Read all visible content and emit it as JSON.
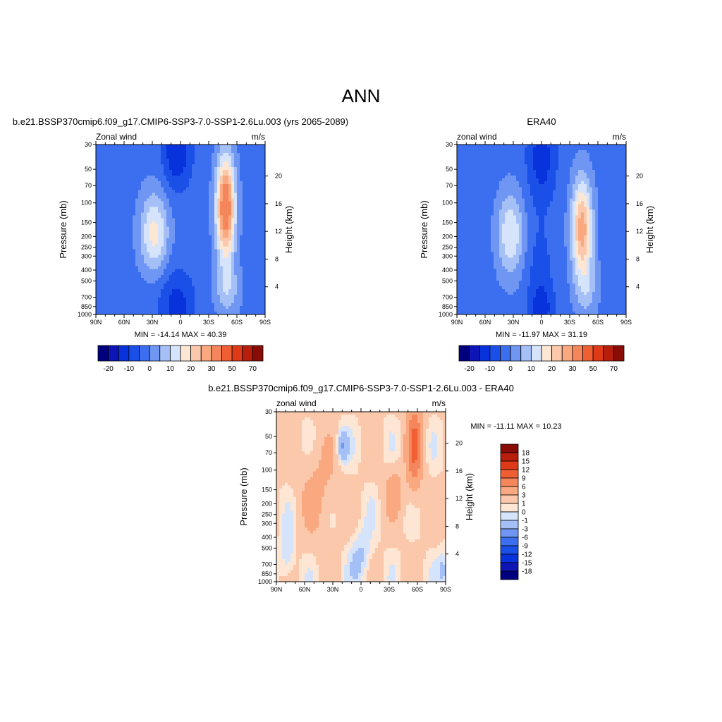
{
  "figure": {
    "main_title": "ANN"
  },
  "chart_data": [
    {
      "type": "heatmap",
      "title": "b.e21.BSSP370cmip6.f09_g17.CMIP6-SSP3-7.0-SSP1-2.6Lu.003 (yrs 2065-2089)",
      "left_label": "Zonal wind",
      "right_label": "m/s",
      "ylabel": "Pressure (mb)",
      "ylabel_right": "Height (km)",
      "x_ticks": [
        "90N",
        "60N",
        "30N",
        "0",
        "30S",
        "60S",
        "90S"
      ],
      "y_ticks": [
        "30",
        "50",
        "70",
        "100",
        "150",
        "200",
        "250",
        "300",
        "400",
        "500",
        "700",
        "850",
        "1000"
      ],
      "y_ticks_right": [
        "20",
        "16",
        "12",
        "8",
        "4"
      ],
      "ylim": [
        1000,
        30
      ],
      "stats": "MIN = -14.14  MAX =  40.39",
      "colorbar": {
        "orientation": "horizontal",
        "levels": [
          -25,
          -20,
          -15,
          -10,
          -5,
          0,
          5,
          10,
          15,
          20,
          25,
          30,
          40,
          50,
          60,
          70
        ],
        "labels": [
          "-20",
          "-10",
          "0",
          "10",
          "20",
          "30",
          "50",
          "70"
        ],
        "colors": [
          "#00007f",
          "#0e15b7",
          "#0832db",
          "#1a4fe8",
          "#3b6ff0",
          "#6f96f3",
          "#a5c0f7",
          "#d6e4fb",
          "#fde6d3",
          "#fcc8ab",
          "#f9a880",
          "#f5855a",
          "#f05f34",
          "#df3a17",
          "#b71e0c",
          "#8a0c06"
        ]
      }
    },
    {
      "type": "heatmap",
      "title": "ERA40",
      "left_label": "zonal wind",
      "right_label": "m/s",
      "ylabel": "Pressure (mb)",
      "ylabel_right": "Height (km)",
      "x_ticks": [
        "90N",
        "60N",
        "30N",
        "0",
        "30S",
        "60S",
        "90S"
      ],
      "y_ticks": [
        "30",
        "50",
        "70",
        "100",
        "150",
        "200",
        "250",
        "300",
        "400",
        "500",
        "700",
        "850",
        "1000"
      ],
      "y_ticks_right": [
        "20",
        "16",
        "12",
        "8",
        "4"
      ],
      "ylim": [
        1000,
        30
      ],
      "stats": "MIN = -11.97  MAX =  31.19",
      "colorbar": {
        "orientation": "horizontal",
        "levels": [
          -25,
          -20,
          -15,
          -10,
          -5,
          0,
          5,
          10,
          15,
          20,
          25,
          30,
          40,
          50,
          60,
          70
        ],
        "labels": [
          "-20",
          "-10",
          "0",
          "10",
          "20",
          "30",
          "50",
          "70"
        ],
        "colors": [
          "#00007f",
          "#0e15b7",
          "#0832db",
          "#1a4fe8",
          "#3b6ff0",
          "#6f96f3",
          "#a5c0f7",
          "#d6e4fb",
          "#fde6d3",
          "#fcc8ab",
          "#f9a880",
          "#f5855a",
          "#f05f34",
          "#df3a17",
          "#b71e0c",
          "#8a0c06"
        ]
      }
    },
    {
      "type": "heatmap",
      "title": "b.e21.BSSP370cmip6.f09_g17.CMIP6-SSP3-7.0-SSP1-2.6Lu.003 - ERA40",
      "left_label": "zonal wind",
      "right_label": "m/s",
      "ylabel": "Pressure (mb)",
      "ylabel_right": "Height (km)",
      "x_ticks": [
        "90N",
        "60N",
        "30N",
        "0",
        "30S",
        "60S",
        "90S"
      ],
      "y_ticks": [
        "30",
        "50",
        "70",
        "100",
        "150",
        "200",
        "250",
        "300",
        "400",
        "500",
        "700",
        "850",
        "1000"
      ],
      "y_ticks_right": [
        "20",
        "16",
        "12",
        "8",
        "4"
      ],
      "ylim": [
        1000,
        30
      ],
      "stats": "MIN = -11.11  MAX =  10.23",
      "colorbar": {
        "orientation": "vertical",
        "levels": [
          18,
          15,
          12,
          9,
          6,
          3,
          1,
          0,
          -1,
          -3,
          -6,
          -9,
          -12,
          -15,
          -18
        ],
        "labels": [
          "18",
          "15",
          "12",
          "9",
          "6",
          "3",
          "1",
          "0",
          "-1",
          "-3",
          "-6",
          "-9",
          "-12",
          "-15",
          "-18"
        ],
        "colors": [
          "#8a0c06",
          "#b71e0c",
          "#df3a17",
          "#f05f34",
          "#f5855a",
          "#f9a880",
          "#fcc8ab",
          "#fde6d3",
          "#d6e4fb",
          "#a5c0f7",
          "#6f96f3",
          "#3b6ff0",
          "#1a4fe8",
          "#0832db",
          "#0e15b7",
          "#00007f"
        ]
      }
    }
  ]
}
